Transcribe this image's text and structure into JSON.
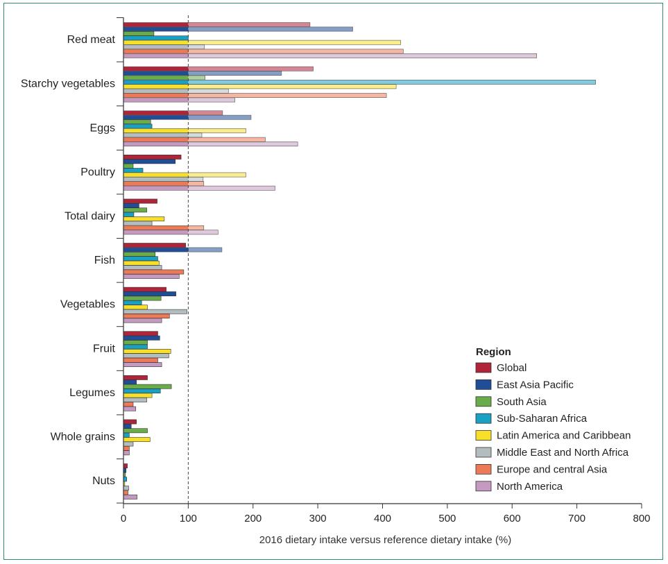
{
  "chart_data": {
    "type": "bar",
    "orientation": "horizontal",
    "categories": [
      "Red meat",
      "Starchy vegetables",
      "Eggs",
      "Poultry",
      "Total dairy",
      "Fish",
      "Vegetables",
      "Fruit",
      "Legumes",
      "Whole grains",
      "Nuts"
    ],
    "series": [
      {
        "name": "Global",
        "color": "#b0243a",
        "values": [
          288,
          293,
          153,
          89,
          52,
          96,
          66,
          53,
          37,
          20,
          6
        ]
      },
      {
        "name": "East Asia Pacific",
        "color": "#1f4e96",
        "values": [
          354,
          244,
          197,
          80,
          24,
          152,
          81,
          56,
          20,
          12,
          4
        ]
      },
      {
        "name": "South Asia",
        "color": "#6aab4a",
        "values": [
          47,
          126,
          42,
          15,
          36,
          49,
          58,
          37,
          74,
          37,
          3
        ]
      },
      {
        "name": "Sub-Saharan Africa",
        "color": "#1aa0c3",
        "values": [
          100,
          729,
          44,
          30,
          16,
          53,
          28,
          37,
          57,
          9,
          5
        ]
      },
      {
        "name": "Latin America and Caribbean",
        "color": "#f7df2a",
        "values": [
          428,
          421,
          189,
          189,
          63,
          55,
          37,
          73,
          44,
          41,
          2
        ]
      },
      {
        "name": "Middle East and North Africa",
        "color": "#b3bcbf",
        "values": [
          125,
          162,
          121,
          123,
          44,
          59,
          98,
          70,
          36,
          15,
          8
        ]
      },
      {
        "name": "Europe and central  Asia",
        "color": "#ec7a56",
        "values": [
          432,
          406,
          219,
          124,
          124,
          93,
          71,
          53,
          15,
          9,
          7
        ]
      },
      {
        "name": "North America",
        "color": "#c59ac0",
        "values": [
          638,
          172,
          269,
          234,
          146,
          86,
          59,
          59,
          19,
          9,
          21
        ]
      }
    ],
    "xlabel": "2016 dietary intake versus reference dietary intake (%)",
    "xlim": [
      0,
      800
    ],
    "xticks": [
      "0",
      "100",
      "200",
      "300",
      "400",
      "500",
      "600",
      "700",
      "800"
    ],
    "reference_line": 100,
    "grid": false,
    "legend_title": "Region",
    "legend_position": "bottom-right"
  }
}
